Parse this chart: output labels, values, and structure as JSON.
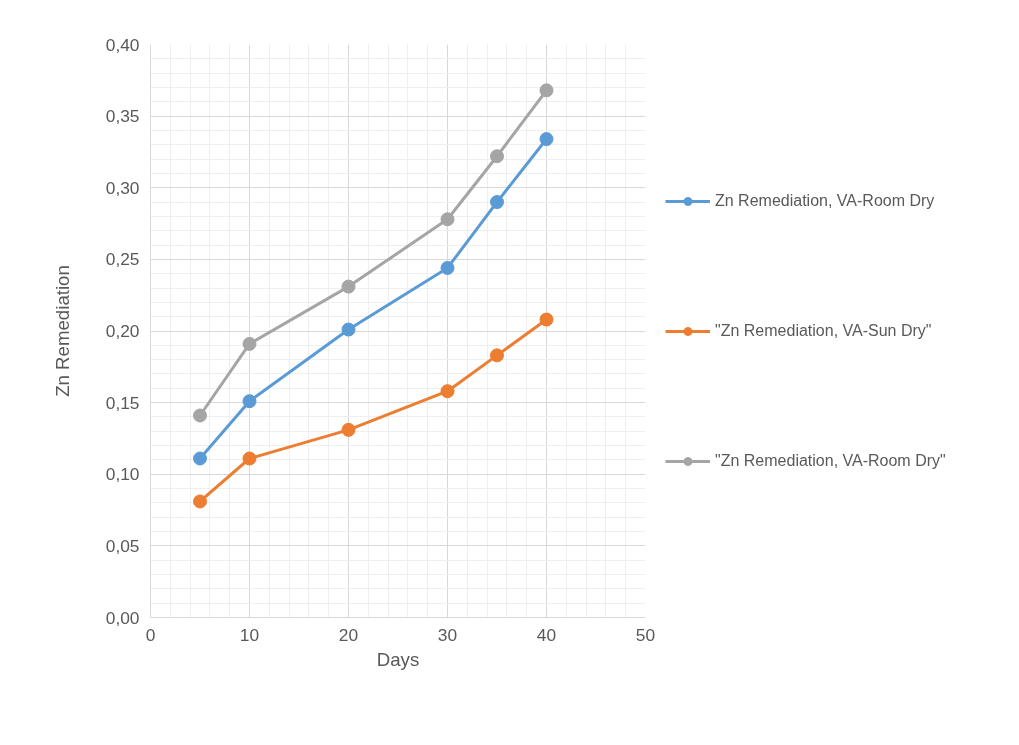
{
  "chart_data": {
    "type": "line",
    "xlabel": "Days",
    "ylabel": "Zn Remediation",
    "x": [
      5,
      10,
      20,
      30,
      35,
      40
    ],
    "series": [
      {
        "name": "Zn Remediation, VA-Room Dry",
        "color": "#5b9bd5",
        "values": [
          0.111,
          0.151,
          0.201,
          0.244,
          0.29,
          0.334
        ]
      },
      {
        "name": "\"Zn Remediation, VA-Sun Dry\"",
        "color": "#ed7d31",
        "values": [
          0.081,
          0.111,
          0.131,
          0.158,
          0.183,
          0.208
        ]
      },
      {
        "name": "\"Zn Remediation, VA-Room Dry\"",
        "color": "#a5a5a5",
        "values": [
          0.141,
          0.191,
          0.231,
          0.278,
          0.322,
          0.368
        ]
      }
    ],
    "xlim": [
      0,
      50
    ],
    "xticks": [
      0,
      10,
      20,
      30,
      40,
      50
    ],
    "ylim": [
      0,
      0.4
    ],
    "yticks": [
      {
        "value": 0,
        "label": "0,00"
      },
      {
        "value": 0.05,
        "label": "0,05"
      },
      {
        "value": 0.1,
        "label": "0,10"
      },
      {
        "value": 0.15,
        "label": "0,15"
      },
      {
        "value": 0.2,
        "label": "0,20"
      },
      {
        "value": 0.25,
        "label": "0,25"
      },
      {
        "value": 0.3,
        "label": "0,30"
      },
      {
        "value": 0.35,
        "label": "0,35"
      },
      {
        "value": 0.4,
        "label": "0,40"
      }
    ],
    "grid": true,
    "legend": "right",
    "marker": "circle",
    "line_style": "solid"
  }
}
